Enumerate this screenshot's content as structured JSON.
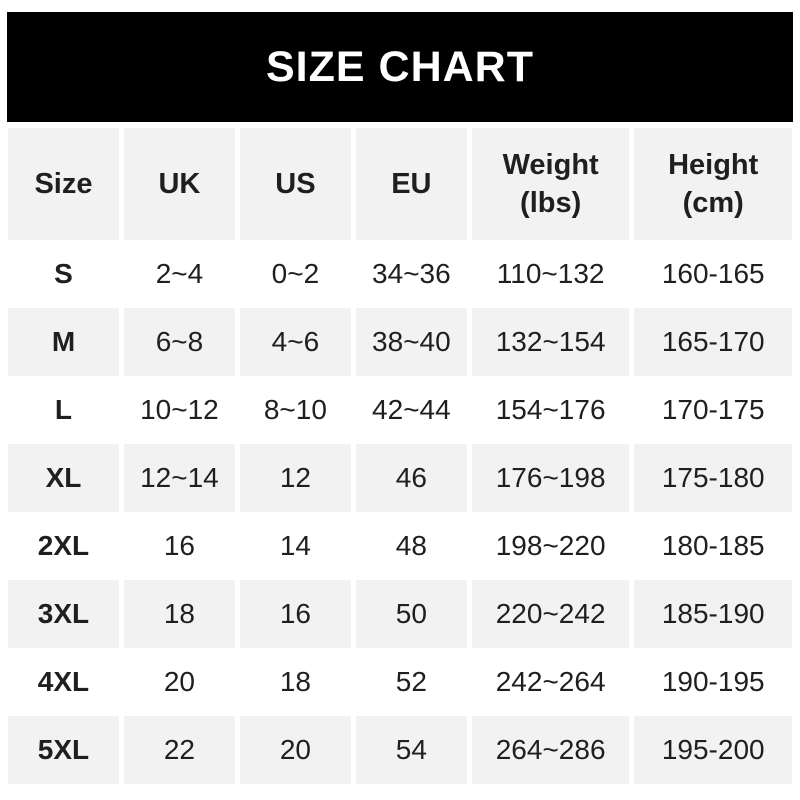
{
  "banner": {
    "title": "SIZE CHART",
    "bg_color": "#000000",
    "text_color": "#ffffff"
  },
  "colors": {
    "page_background": "#ffffff",
    "stripe": "#f2f2f2",
    "text": "#1f1f1f"
  },
  "table": {
    "columns": [
      {
        "key": "size",
        "label": "Size",
        "sublabel": ""
      },
      {
        "key": "uk",
        "label": "UK",
        "sublabel": ""
      },
      {
        "key": "us",
        "label": "US",
        "sublabel": ""
      },
      {
        "key": "eu",
        "label": "EU",
        "sublabel": ""
      },
      {
        "key": "weight",
        "label": "Weight",
        "sublabel": "(lbs)"
      },
      {
        "key": "height",
        "label": "Height",
        "sublabel": "(cm)"
      }
    ],
    "rows": [
      {
        "size": "S",
        "uk": "2~4",
        "us": "0~2",
        "eu": "34~36",
        "weight": "110~132",
        "height": "160-165"
      },
      {
        "size": "M",
        "uk": "6~8",
        "us": "4~6",
        "eu": "38~40",
        "weight": "132~154",
        "height": "165-170"
      },
      {
        "size": "L",
        "uk": "10~12",
        "us": "8~10",
        "eu": "42~44",
        "weight": "154~176",
        "height": "170-175"
      },
      {
        "size": "XL",
        "uk": "12~14",
        "us": "12",
        "eu": "46",
        "weight": "176~198",
        "height": "175-180"
      },
      {
        "size": "2XL",
        "uk": "16",
        "us": "14",
        "eu": "48",
        "weight": "198~220",
        "height": "180-185"
      },
      {
        "size": "3XL",
        "uk": "18",
        "us": "16",
        "eu": "50",
        "weight": "220~242",
        "height": "185-190"
      },
      {
        "size": "4XL",
        "uk": "20",
        "us": "18",
        "eu": "52",
        "weight": "242~264",
        "height": "190-195"
      },
      {
        "size": "5XL",
        "uk": "22",
        "us": "20",
        "eu": "54",
        "weight": "264~286",
        "height": "195-200"
      }
    ]
  },
  "chart_data": {
    "type": "table",
    "title": "SIZE CHART",
    "columns": [
      "Size",
      "UK",
      "US",
      "EU",
      "Weight (lbs)",
      "Height (cm)"
    ],
    "rows": [
      [
        "S",
        "2~4",
        "0~2",
        "34~36",
        "110~132",
        "160-165"
      ],
      [
        "M",
        "6~8",
        "4~6",
        "38~40",
        "132~154",
        "165-170"
      ],
      [
        "L",
        "10~12",
        "8~10",
        "42~44",
        "154~176",
        "170-175"
      ],
      [
        "XL",
        "12~14",
        "12",
        "46",
        "176~198",
        "175-180"
      ],
      [
        "2XL",
        "16",
        "14",
        "48",
        "198~220",
        "180-185"
      ],
      [
        "3XL",
        "18",
        "16",
        "50",
        "220~242",
        "185-190"
      ],
      [
        "4XL",
        "20",
        "18",
        "52",
        "242~264",
        "190-195"
      ],
      [
        "5XL",
        "22",
        "20",
        "54",
        "264~286",
        "195-200"
      ]
    ],
    "layout": {
      "striped_rows": true,
      "stripe_color": "#f2f2f2",
      "header_background": "#f2f2f2"
    }
  }
}
